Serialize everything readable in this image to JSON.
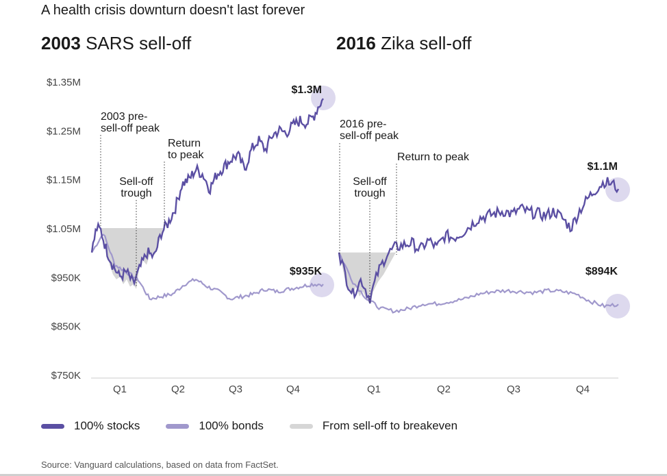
{
  "title": "A health crisis downturn doesn't last forever",
  "panels": [
    {
      "year": "2003",
      "name": "SARS sell-off"
    },
    {
      "year": "2016",
      "name": "Zika sell-off"
    }
  ],
  "legend": [
    {
      "label": "100% stocks",
      "color": "#5b4fa3"
    },
    {
      "label": "100% bonds",
      "color": "#a098cc"
    },
    {
      "label": "From sell-off to breakeven",
      "color": "#d6d6d6"
    }
  ],
  "source": "Source: Vanguard calculations, based on data from FactSet.",
  "colors": {
    "stocks": "#5b4fa3",
    "bonds": "#a098cc",
    "shade": "#d6d6d6",
    "highlight": "#ddd9ee"
  },
  "chart_data": [
    {
      "type": "line",
      "title": "2003 SARS sell-off",
      "y_ticks": [
        "$1.35M",
        "$1.25M",
        "$1.15M",
        "$1.05M",
        "$950K",
        "$850K",
        "$750K"
      ],
      "ylim": [
        750,
        1350
      ],
      "x_ticks": [
        "Q1",
        "Q2",
        "Q3",
        "Q4"
      ],
      "series": [
        {
          "name": "100% stocks",
          "x": [
            0,
            0.02,
            0.04,
            0.06,
            0.09,
            0.12,
            0.15,
            0.18,
            0.21,
            0.24,
            0.27,
            0.3,
            0.33,
            0.36,
            0.39,
            0.42,
            0.45,
            0.48,
            0.51,
            0.54,
            0.57,
            0.6,
            0.63,
            0.66,
            0.69,
            0.72,
            0.75,
            0.78,
            0.81,
            0.84,
            0.87,
            0.9,
            0.93,
            0.96,
            0.98,
            1.0
          ],
          "values": [
            1000,
            1050,
            1045,
            1010,
            975,
            950,
            960,
            935,
            970,
            1000,
            990,
            1040,
            1060,
            1090,
            1140,
            1150,
            1170,
            1160,
            1130,
            1160,
            1175,
            1190,
            1200,
            1170,
            1210,
            1230,
            1210,
            1240,
            1250,
            1245,
            1260,
            1270,
            1265,
            1280,
            1300,
            1315
          ]
        },
        {
          "name": "100% bonds",
          "x": [
            0,
            0.05,
            0.1,
            0.15,
            0.2,
            0.25,
            0.3,
            0.35,
            0.4,
            0.45,
            0.5,
            0.55,
            0.6,
            0.65,
            0.7,
            0.75,
            0.8,
            0.85,
            0.9,
            0.95,
            1.0
          ],
          "values": [
            1000,
            1040,
            975,
            960,
            945,
            905,
            910,
            915,
            935,
            945,
            930,
            920,
            905,
            910,
            915,
            925,
            920,
            925,
            930,
            935,
            935
          ]
        }
      ],
      "annotations": [
        "2003 pre-sell-off peak",
        "Sell-off trough",
        "Return to peak"
      ],
      "end_labels": {
        "stocks": "$1.3M",
        "bonds": "$935K"
      }
    },
    {
      "type": "line",
      "title": "2016 Zika sell-off",
      "x_ticks": [
        "Q1",
        "Q2",
        "Q3",
        "Q4"
      ],
      "ylim": [
        750,
        1350
      ],
      "series": [
        {
          "name": "100% stocks",
          "x": [
            0,
            0.03,
            0.05,
            0.08,
            0.11,
            0.14,
            0.17,
            0.2,
            0.23,
            0.26,
            0.29,
            0.32,
            0.35,
            0.38,
            0.41,
            0.44,
            0.47,
            0.5,
            0.53,
            0.56,
            0.59,
            0.62,
            0.65,
            0.68,
            0.71,
            0.74,
            0.77,
            0.8,
            0.83,
            0.86,
            0.89,
            0.92,
            0.95,
            0.98,
            1.0
          ],
          "values": [
            1000,
            940,
            915,
            945,
            905,
            960,
            995,
            1010,
            1015,
            1020,
            1005,
            1025,
            1010,
            1035,
            1030,
            1040,
            1055,
            1070,
            1075,
            1080,
            1085,
            1078,
            1090,
            1082,
            1080,
            1075,
            1085,
            1070,
            1050,
            1085,
            1110,
            1130,
            1145,
            1140,
            1130
          ]
        },
        {
          "name": "100% bonds",
          "x": [
            0,
            0.05,
            0.1,
            0.15,
            0.2,
            0.25,
            0.3,
            0.35,
            0.4,
            0.45,
            0.5,
            0.55,
            0.6,
            0.65,
            0.7,
            0.75,
            0.8,
            0.85,
            0.9,
            0.95,
            1.0
          ],
          "values": [
            1000,
            940,
            905,
            885,
            880,
            885,
            895,
            895,
            900,
            905,
            915,
            920,
            922,
            920,
            918,
            922,
            920,
            915,
            900,
            890,
            894
          ]
        }
      ],
      "annotations": [
        "2016 pre-sell-off peak",
        "Sell-off trough",
        "Return to peak"
      ],
      "end_labels": {
        "stocks": "$1.1M",
        "bonds": "$894K"
      }
    }
  ]
}
